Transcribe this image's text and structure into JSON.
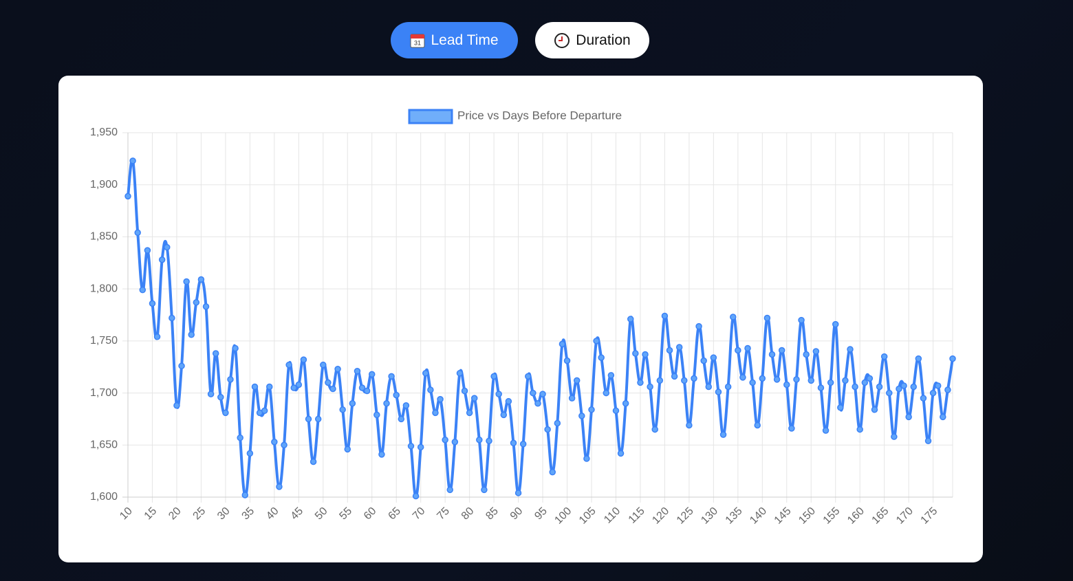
{
  "controls": {
    "buttons": [
      {
        "label": "Lead Time"
      },
      {
        "label": "Duration"
      }
    ]
  },
  "chart_data": {
    "type": "line",
    "x": [
      10,
      11,
      12,
      13,
      14,
      15,
      16,
      17,
      18,
      19,
      20,
      21,
      22,
      23,
      24,
      25,
      26,
      27,
      28,
      29,
      30,
      31,
      32,
      33,
      34,
      35,
      36,
      37,
      38,
      39,
      40,
      41,
      42,
      43,
      44,
      45,
      46,
      47,
      48,
      49,
      50,
      51,
      52,
      53,
      54,
      55,
      56,
      57,
      58,
      59,
      60,
      61,
      62,
      63,
      64,
      65,
      66,
      67,
      68,
      69,
      70,
      71,
      72,
      73,
      74,
      75,
      76,
      77,
      78,
      79,
      80,
      81,
      82,
      83,
      84,
      85,
      86,
      87,
      88,
      89,
      90,
      91,
      92,
      93,
      94,
      95,
      96,
      97,
      98,
      99,
      100,
      101,
      102,
      103,
      104,
      105,
      106,
      107,
      108,
      109,
      110,
      111,
      112,
      113,
      114,
      115,
      116,
      117,
      118,
      119,
      120,
      121,
      122,
      123,
      124,
      125,
      126,
      127,
      128,
      129,
      130,
      131,
      132,
      133,
      134,
      135,
      136,
      137,
      138,
      139,
      140,
      141,
      142,
      143,
      144,
      145,
      146,
      147,
      148,
      149,
      150,
      151,
      152,
      153,
      154,
      155,
      156,
      157,
      158,
      159,
      160,
      161,
      162,
      163,
      164,
      165,
      166,
      167,
      168,
      169,
      170,
      171,
      172,
      173,
      174,
      175,
      176,
      177,
      178,
      179
    ],
    "series": [
      {
        "name": "Price vs Days Before Departure",
        "color": "#3b82f6",
        "values": [
          1889,
          1923,
          1854,
          1799,
          1837,
          1786,
          1754,
          1828,
          1840,
          1772,
          1688,
          1726,
          1807,
          1756,
          1787,
          1809,
          1783,
          1699,
          1738,
          1696,
          1681,
          1713,
          1743,
          1657,
          1602,
          1642,
          1706,
          1681,
          1683,
          1706,
          1653,
          1610,
          1650,
          1727,
          1705,
          1708,
          1732,
          1675,
          1634,
          1675,
          1727,
          1710,
          1704,
          1723,
          1684,
          1646,
          1690,
          1721,
          1705,
          1702,
          1718,
          1679,
          1641,
          1690,
          1716,
          1698,
          1675,
          1688,
          1649,
          1601,
          1648,
          1719,
          1703,
          1681,
          1694,
          1655,
          1607,
          1653,
          1719,
          1702,
          1681,
          1695,
          1655,
          1607,
          1654,
          1716,
          1699,
          1679,
          1692,
          1652,
          1604,
          1651,
          1716,
          1700,
          1690,
          1699,
          1665,
          1624,
          1671,
          1747,
          1731,
          1695,
          1712,
          1678,
          1637,
          1684,
          1750,
          1734,
          1700,
          1717,
          1683,
          1642,
          1690,
          1771,
          1738,
          1710,
          1737,
          1706,
          1665,
          1712,
          1774,
          1741,
          1716,
          1744,
          1712,
          1669,
          1714,
          1764,
          1731,
          1706,
          1734,
          1701,
          1660,
          1706,
          1773,
          1741,
          1715,
          1743,
          1710,
          1669,
          1714,
          1772,
          1737,
          1713,
          1741,
          1708,
          1666,
          1713,
          1770,
          1737,
          1712,
          1740,
          1705,
          1664,
          1710,
          1766,
          1686,
          1712,
          1742,
          1706,
          1665,
          1710,
          1714,
          1684,
          1706,
          1735,
          1700,
          1658,
          1704,
          1707,
          1677,
          1706,
          1733,
          1695,
          1654,
          1700,
          1707,
          1677,
          1703,
          1733
        ]
      }
    ],
    "xlim": [
      10,
      179
    ],
    "xticks": [
      10,
      15,
      20,
      25,
      30,
      35,
      40,
      45,
      50,
      55,
      60,
      65,
      70,
      75,
      80,
      85,
      90,
      95,
      100,
      105,
      110,
      115,
      120,
      125,
      130,
      135,
      140,
      145,
      150,
      155,
      160,
      165,
      170,
      175
    ],
    "ylim": [
      1600,
      1950
    ],
    "yticks": [
      {
        "value": 1600,
        "label": "1,600"
      },
      {
        "value": 1650,
        "label": "1,650"
      },
      {
        "value": 1700,
        "label": "1,700"
      },
      {
        "value": 1750,
        "label": "1,750"
      },
      {
        "value": 1800,
        "label": "1,800"
      },
      {
        "value": 1850,
        "label": "1,850"
      },
      {
        "value": 1900,
        "label": "1,900"
      },
      {
        "value": 1950,
        "label": "1,950"
      }
    ],
    "grid": true,
    "legend": "top"
  }
}
